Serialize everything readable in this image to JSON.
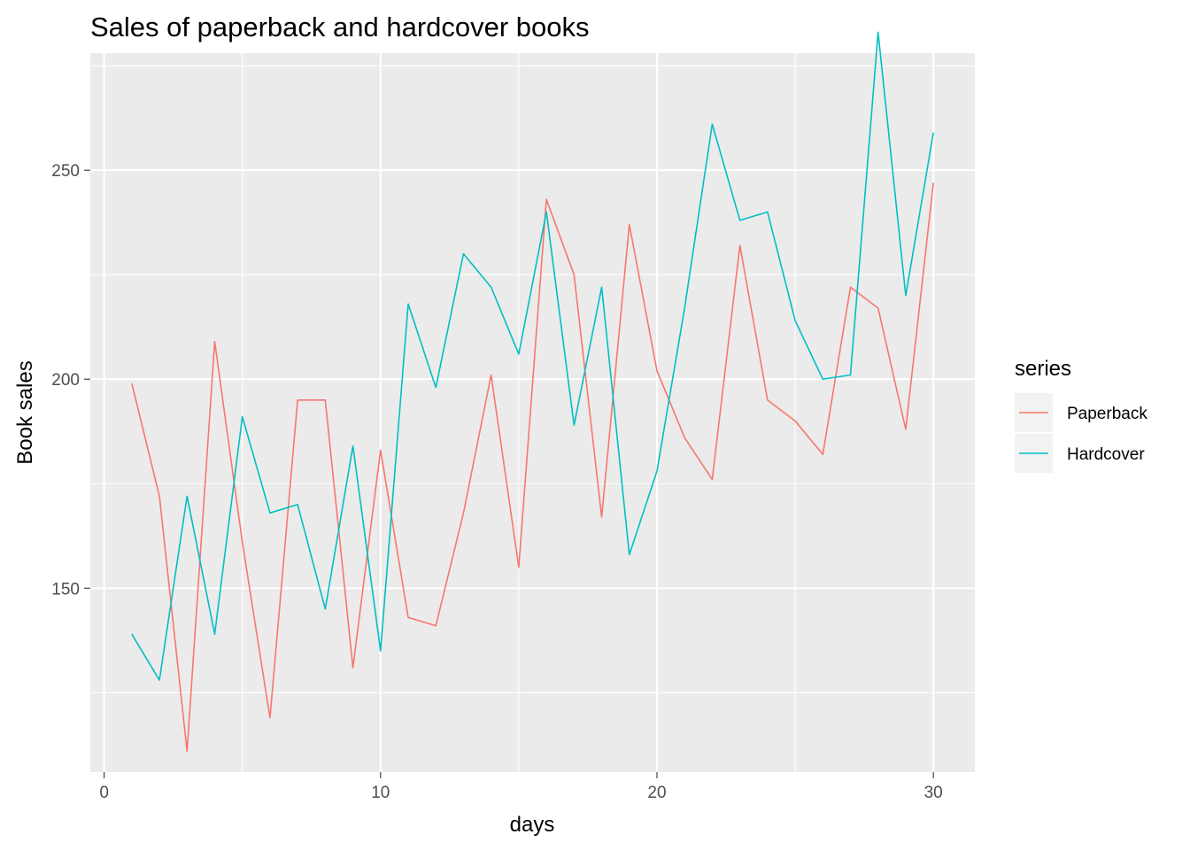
{
  "chart_data": {
    "type": "line",
    "title": "Sales of paperback and hardcover books",
    "xlabel": "days",
    "ylabel": "Book sales",
    "xlim": [
      -0.5,
      31.5
    ],
    "ylim": [
      106,
      278
    ],
    "xticks": [
      0,
      10,
      20,
      30
    ],
    "xtick_labels": [
      "0",
      "10",
      "20",
      "30"
    ],
    "yticks": [
      150,
      200,
      250
    ],
    "ytick_labels": [
      "150",
      "200",
      "250"
    ],
    "grid": true,
    "legend": {
      "title": "series",
      "placement": "right"
    },
    "x": [
      1,
      2,
      3,
      4,
      5,
      6,
      7,
      8,
      9,
      10,
      11,
      12,
      13,
      14,
      15,
      16,
      17,
      18,
      19,
      20,
      21,
      22,
      23,
      24,
      25,
      26,
      27,
      28,
      29,
      30
    ],
    "series": [
      {
        "name": "Paperback",
        "color": "#F8766D",
        "values": [
          199,
          172,
          111,
          209,
          161,
          119,
          195,
          195,
          131,
          183,
          143,
          141,
          168,
          201,
          155,
          243,
          225,
          167,
          237,
          202,
          186,
          176,
          232,
          195,
          190,
          182,
          222,
          217,
          188,
          247
        ]
      },
      {
        "name": "Hardcover",
        "color": "#00BFC4",
        "values": [
          139,
          128,
          172,
          139,
          191,
          168,
          170,
          145,
          184,
          135,
          218,
          198,
          230,
          222,
          206,
          240,
          189,
          222,
          158,
          178,
          217,
          261,
          238,
          240,
          214,
          200,
          201,
          283,
          220,
          259
        ]
      }
    ],
    "panel_background": "#EBEBEB",
    "grid_color": "#FFFFFF"
  }
}
